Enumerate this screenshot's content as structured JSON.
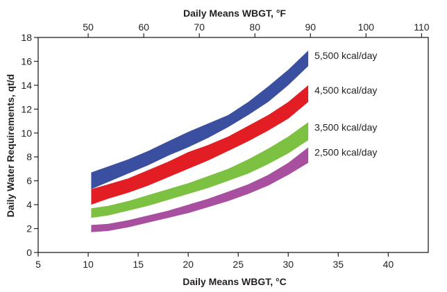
{
  "chart_data": {
    "type": "area",
    "title": "",
    "xlabel_bottom": "Daily Means WBGT, °C",
    "xlabel_top": "Daily Means WBGT, °F",
    "ylabel": "Daily Water Requirements, qt/d",
    "xlim_c": [
      5,
      44
    ],
    "xticks_c": [
      5,
      10,
      15,
      20,
      25,
      30,
      35,
      40
    ],
    "xticks_f": [
      50,
      60,
      70,
      80,
      90,
      100,
      110
    ],
    "ylim": [
      0,
      18
    ],
    "yticks": [
      0,
      2,
      4,
      6,
      8,
      10,
      12,
      14,
      16,
      18
    ],
    "grid": false,
    "legend": "direct labels at right end of each band",
    "series": [
      {
        "name": "5,500 kcal/day",
        "color": "#3b4fa0",
        "x": [
          10.3,
          12,
          14,
          16,
          18,
          20,
          22,
          24,
          26,
          28,
          30,
          32
        ],
        "lower": [
          5.3,
          5.9,
          6.6,
          7.3,
          8.1,
          8.8,
          9.6,
          10.5,
          11.5,
          12.6,
          14.0,
          15.6
        ],
        "upper": [
          6.7,
          7.2,
          7.8,
          8.5,
          9.3,
          10.1,
          10.8,
          11.5,
          12.6,
          13.9,
          15.3,
          16.9
        ]
      },
      {
        "name": "4,500 kcal/day",
        "color": "#e31d24",
        "x": [
          10.3,
          12,
          14,
          16,
          18,
          20,
          22,
          24,
          26,
          28,
          30,
          32
        ],
        "lower": [
          4.0,
          4.5,
          5.0,
          5.6,
          6.3,
          7.0,
          7.7,
          8.5,
          9.3,
          10.2,
          11.2,
          12.6
        ],
        "upper": [
          5.3,
          5.7,
          6.2,
          6.9,
          7.6,
          8.4,
          9.0,
          9.7,
          10.6,
          11.5,
          12.6,
          14.0
        ]
      },
      {
        "name": "3,500 kcal/day",
        "color": "#7dc142",
        "x": [
          10.3,
          12,
          14,
          16,
          18,
          20,
          22,
          24,
          26,
          28,
          30,
          32
        ],
        "lower": [
          2.9,
          3.1,
          3.5,
          3.9,
          4.4,
          4.9,
          5.4,
          6.0,
          6.6,
          7.4,
          8.3,
          9.4
        ],
        "upper": [
          3.7,
          3.9,
          4.3,
          4.8,
          5.3,
          5.8,
          6.4,
          7.0,
          7.8,
          8.7,
          9.7,
          10.9
        ]
      },
      {
        "name": "2,500 kcal/day",
        "color": "#a84f9f",
        "x": [
          10.3,
          12,
          14,
          16,
          18,
          20,
          22,
          24,
          26,
          28,
          30,
          32
        ],
        "lower": [
          1.7,
          1.8,
          2.1,
          2.5,
          2.9,
          3.3,
          3.8,
          4.3,
          4.9,
          5.6,
          6.5,
          7.5
        ],
        "upper": [
          2.3,
          2.4,
          2.7,
          3.1,
          3.5,
          4.0,
          4.5,
          5.1,
          5.7,
          6.5,
          7.5,
          8.8
        ]
      }
    ]
  }
}
